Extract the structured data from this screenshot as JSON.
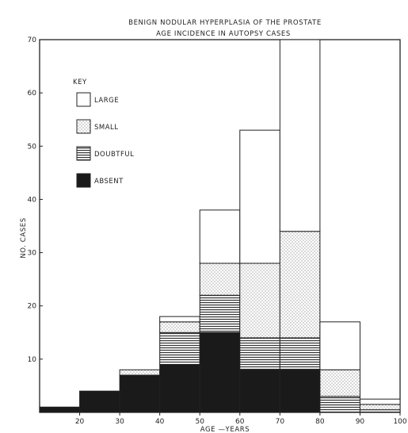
{
  "chart_data": {
    "type": "bar",
    "title": "BENIGN NODULAR HYPERPLASIA OF THE PROSTATE",
    "subtitle": "AGE INCIDENCE IN AUTOPSY CASES",
    "xlabel": "AGE —YEARS",
    "ylabel": "NO. CASES",
    "xlim": [
      10,
      100
    ],
    "ylim": [
      0,
      70
    ],
    "x_ticks": [
      "20",
      "30",
      "40",
      "50",
      "60",
      "70",
      "80",
      "90",
      "100"
    ],
    "y_ticks": [
      "10",
      "20",
      "30",
      "40",
      "50",
      "60",
      "70"
    ],
    "key_title": "KEY",
    "stacked": true,
    "bins": [
      {
        "from": 10,
        "to": 20
      },
      {
        "from": 20,
        "to": 30
      },
      {
        "from": 30,
        "to": 40
      },
      {
        "from": 40,
        "to": 50
      },
      {
        "from": 50,
        "to": 60
      },
      {
        "from": 60,
        "to": 70
      },
      {
        "from": 70,
        "to": 80
      },
      {
        "from": 80,
        "to": 90
      },
      {
        "from": 90,
        "to": 100
      }
    ],
    "series": [
      {
        "name": "ABSENT",
        "pattern": "solid",
        "values": [
          1,
          4,
          7,
          9,
          15,
          8,
          8,
          0,
          0
        ]
      },
      {
        "name": "DOUBTFUL",
        "pattern": "horizontal",
        "values": [
          0,
          0,
          0,
          6,
          7,
          6,
          6,
          3,
          0.5
        ]
      },
      {
        "name": "SMALL",
        "pattern": "dotted",
        "values": [
          0,
          0,
          1,
          2,
          6,
          14,
          20,
          5,
          1
        ]
      },
      {
        "name": "LARGE",
        "pattern": "open",
        "values": [
          0,
          0,
          0,
          1,
          10,
          25,
          36,
          9,
          1
        ]
      }
    ],
    "grid": false,
    "legend_position": "upper-left"
  }
}
